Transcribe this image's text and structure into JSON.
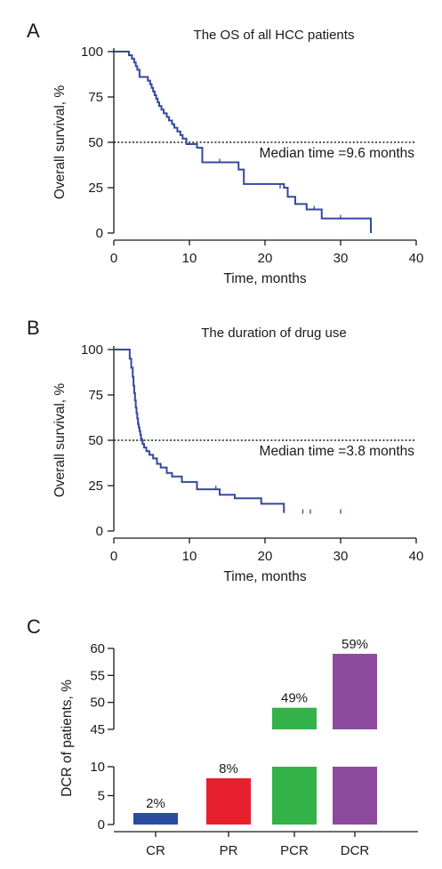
{
  "chart_data": [
    {
      "panel": "A",
      "type": "line",
      "title": "The OS of all HCC patients",
      "xlabel": "Time, months",
      "ylabel": "Overall survival, %",
      "xlim": [
        0,
        40
      ],
      "ylim": [
        0,
        100
      ],
      "xticks": [
        "0",
        "10",
        "20",
        "30",
        "40"
      ],
      "yticks": [
        "0",
        "25",
        "50",
        "75",
        "100"
      ],
      "color": "#3448a0",
      "median_line": 50,
      "annotation": "Median time =9.6 months",
      "series": [
        {
          "x": [
            0,
            2.0,
            2.4,
            2.7,
            2.9,
            3.1,
            3.4,
            4.5,
            4.8,
            5.0,
            5.2,
            5.4,
            5.6,
            5.8,
            6.0,
            6.3,
            6.6,
            7.0,
            7.3,
            7.7,
            8.0,
            8.4,
            8.8,
            9.1,
            9.6,
            11.0,
            11.7,
            16.5,
            17.2,
            22.5,
            23.0,
            24.0,
            25.5,
            27.5,
            34.0
          ],
          "y": [
            100,
            98,
            96,
            94,
            92,
            90,
            86,
            84,
            82,
            80,
            78,
            76,
            74,
            72,
            70,
            68,
            66,
            64,
            62,
            60,
            58,
            56,
            54,
            52,
            49,
            47,
            39,
            35,
            27,
            25,
            20,
            16,
            13,
            8,
            0
          ]
        }
      ],
      "censored": {
        "x": [
          14,
          22,
          26.5,
          30
        ],
        "y": [
          39,
          25,
          13,
          8
        ]
      }
    },
    {
      "panel": "B",
      "type": "line",
      "title": "The duration of drug use",
      "xlabel": "Time, months",
      "ylabel": "Overall survival, %",
      "xlim": [
        0,
        40
      ],
      "ylim": [
        0,
        100
      ],
      "xticks": [
        "0",
        "10",
        "20",
        "30",
        "40"
      ],
      "yticks": [
        "0",
        "25",
        "50",
        "75",
        "100"
      ],
      "color": "#3448a0",
      "median_line": 50,
      "annotation": "Median time =3.8 months",
      "series": [
        {
          "x": [
            0,
            2.1,
            2.3,
            2.5,
            2.6,
            2.7,
            2.8,
            2.9,
            3.0,
            3.1,
            3.2,
            3.3,
            3.4,
            3.5,
            3.6,
            3.7,
            3.8,
            4.0,
            4.3,
            4.7,
            5.2,
            5.7,
            6.2,
            7.0,
            7.7,
            9.0,
            11.0,
            14.0,
            16.0,
            19.5,
            22.5
          ],
          "y": [
            100,
            95,
            90,
            85,
            80,
            76,
            72,
            68,
            65,
            62,
            59,
            57,
            55,
            53,
            51,
            50,
            48,
            46,
            44,
            42,
            40,
            37,
            35,
            32,
            30,
            27,
            23,
            20,
            18,
            15,
            10
          ]
        }
      ],
      "censored": {
        "x": [
          13.5,
          25,
          26,
          30
        ],
        "y": [
          23,
          10,
          10,
          10
        ]
      }
    },
    {
      "panel": "C",
      "type": "bar",
      "xlabel": "",
      "ylabel": "DCR of patients, %",
      "categories": [
        "CR",
        "PR",
        "PCR",
        "DCR"
      ],
      "values": [
        2,
        8,
        49,
        59
      ],
      "value_labels": [
        "2%",
        "8%",
        "49%",
        "59%"
      ],
      "colors": [
        "#2b4aa0",
        "#e8202e",
        "#33b24a",
        "#8b4a9c"
      ],
      "broken_axis": {
        "lower": [
          0,
          10
        ],
        "upper": [
          45,
          60
        ]
      },
      "yticks_lower": [
        "0",
        "5",
        "10"
      ],
      "yticks_upper": [
        "45",
        "50",
        "55",
        "60"
      ]
    }
  ]
}
